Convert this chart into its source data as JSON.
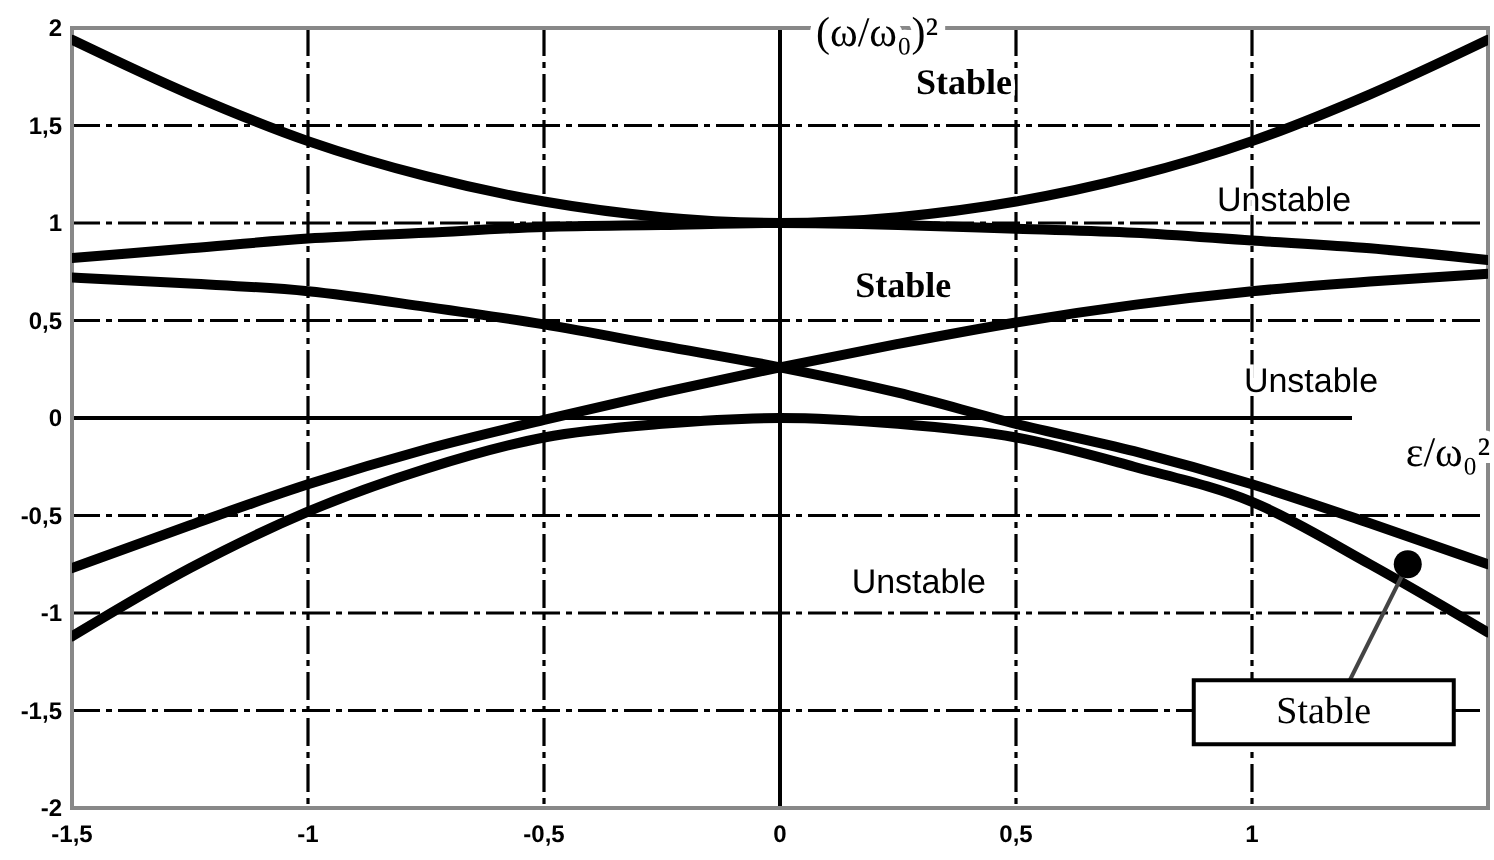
{
  "chart_data": {
    "type": "line",
    "xlabel": "ε/ω₀²",
    "ylabel": "(ω/ω₀)²",
    "x": [
      -1.5,
      -1.25,
      -1,
      -0.75,
      -0.5,
      -0.25,
      0,
      0.25,
      0.5,
      0.75,
      1,
      1.25,
      1.5
    ],
    "series": [
      {
        "color": "#000000",
        "values": [
          1.94,
          1.66,
          1.42,
          1.24,
          1.11,
          1.03,
          1.0,
          1.03,
          1.11,
          1.24,
          1.42,
          1.66,
          1.94
        ]
      },
      {
        "color": "#000000",
        "values": [
          0.82,
          0.87,
          0.92,
          0.95,
          0.98,
          0.99,
          1.0,
          0.99,
          0.97,
          0.95,
          0.91,
          0.87,
          0.81
        ]
      },
      {
        "color": "#000000",
        "values": [
          0.72,
          0.69,
          0.65,
          0.57,
          0.48,
          0.37,
          0.26,
          0.13,
          -0.03,
          -0.17,
          -0.34,
          -0.54,
          -0.75
        ]
      },
      {
        "color": "#000000",
        "values": [
          -0.77,
          -0.55,
          -0.34,
          -0.16,
          -0.01,
          0.13,
          0.26,
          0.38,
          0.49,
          0.58,
          0.65,
          0.7,
          0.74
        ]
      },
      {
        "color": "#000000",
        "values": [
          -1.12,
          -0.77,
          -0.48,
          -0.26,
          -0.1,
          -0.03,
          0.0,
          -0.03,
          -0.1,
          -0.25,
          -0.43,
          -0.75,
          -1.1
        ]
      }
    ],
    "xlim": [
      -1.5,
      1.5
    ],
    "ylim": [
      -2,
      2
    ],
    "xticks": [
      {
        "value": -1.5,
        "label": "-1,5"
      },
      -1,
      {
        "value": -0.5,
        "label": "-0,5"
      },
      0,
      {
        "value": 0.5,
        "label": "0,5"
      },
      1
    ],
    "yticks": [
      2,
      {
        "value": 1.5,
        "label": "1,5"
      },
      1,
      {
        "value": 0.5,
        "label": "0,5"
      },
      0,
      {
        "value": -0.5,
        "label": "-0,5"
      },
      -1,
      {
        "value": -1.5,
        "label": "-1,5"
      },
      -2
    ],
    "grid": true,
    "annotations": [
      "Stable",
      "Unstable",
      "Stable",
      "Unstable",
      "Unstable",
      {
        "text": "Stable",
        "x": 1.33,
        "y": -0.75
      }
    ]
  }
}
